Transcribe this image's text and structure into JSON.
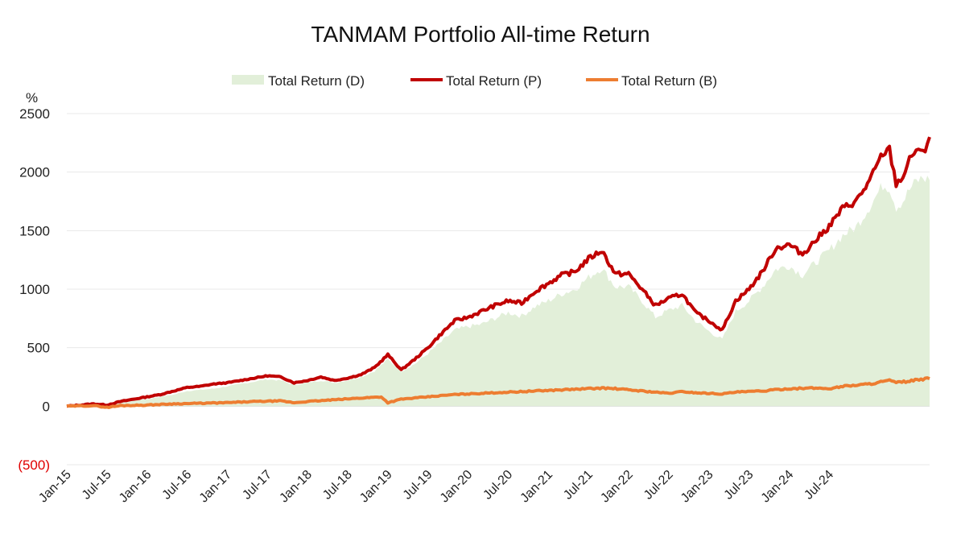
{
  "chart_data": {
    "type": "line",
    "title": "TANMAM Portfolio All-time Return",
    "ylabel": "%",
    "xlabel": "",
    "ylim": [
      -500,
      2500
    ],
    "yticks": [
      2500,
      2000,
      1500,
      1000,
      500,
      0,
      -500
    ],
    "ytick_labels": [
      "2500",
      "2000",
      "1500",
      "1000",
      "500",
      "0",
      "(500)"
    ],
    "xtick_labels": [
      "Jan-15",
      "Jul-15",
      "Jan-16",
      "Jul-16",
      "Jan-17",
      "Jul-17",
      "Jan-18",
      "Jul-18",
      "Jan-19",
      "Jul-19",
      "Jan-20",
      "Jul-20",
      "Jan-21",
      "Jul-21",
      "Jan-22",
      "Jul-22",
      "Jan-23",
      "Jul-23",
      "Jan-24",
      "Jul-24"
    ],
    "legend_position": "top",
    "colors": {
      "D": "#e2efd9",
      "P": "#c00000",
      "B": "#ed7d31"
    },
    "series": [
      {
        "name": "Total Return (D)",
        "kind": "area",
        "points": [
          [
            0,
            0
          ],
          [
            2,
            10
          ],
          [
            4,
            20
          ],
          [
            6,
            10
          ],
          [
            8,
            30
          ],
          [
            10,
            50
          ],
          [
            12,
            60
          ],
          [
            14,
            80
          ],
          [
            16,
            100
          ],
          [
            18,
            130
          ],
          [
            20,
            140
          ],
          [
            22,
            150
          ],
          [
            24,
            170
          ],
          [
            26,
            190
          ],
          [
            28,
            210
          ],
          [
            30,
            230
          ],
          [
            32,
            220
          ],
          [
            34,
            180
          ],
          [
            36,
            200
          ],
          [
            38,
            220
          ],
          [
            40,
            200
          ],
          [
            42,
            220
          ],
          [
            44,
            250
          ],
          [
            46,
            300
          ],
          [
            48,
            400
          ],
          [
            50,
            300
          ],
          [
            52,
            360
          ],
          [
            54,
            450
          ],
          [
            56,
            550
          ],
          [
            58,
            650
          ],
          [
            60,
            680
          ],
          [
            62,
            700
          ],
          [
            64,
            750
          ],
          [
            66,
            800
          ],
          [
            68,
            770
          ],
          [
            70,
            850
          ],
          [
            72,
            900
          ],
          [
            74,
            960
          ],
          [
            76,
            1000
          ],
          [
            78,
            1100
          ],
          [
            80,
            1180
          ],
          [
            82,
            1020
          ],
          [
            84,
            1020
          ],
          [
            86,
            900
          ],
          [
            88,
            760
          ],
          [
            90,
            820
          ],
          [
            92,
            860
          ],
          [
            94,
            730
          ],
          [
            96,
            640
          ],
          [
            98,
            570
          ],
          [
            100,
            810
          ],
          [
            102,
            900
          ],
          [
            104,
            1020
          ],
          [
            106,
            1170
          ],
          [
            108,
            1200
          ],
          [
            110,
            1120
          ],
          [
            112,
            1230
          ],
          [
            114,
            1330
          ],
          [
            116,
            1460
          ],
          [
            118,
            1530
          ],
          [
            120,
            1700
          ],
          [
            122,
            1890
          ],
          [
            123,
            1870
          ],
          [
            124,
            1700
          ],
          [
            125,
            1750
          ],
          [
            126,
            1850
          ],
          [
            127,
            1920
          ],
          [
            128,
            1950
          ],
          [
            129,
            1930
          ]
        ]
      },
      {
        "name": "Total Return (P)",
        "kind": "line",
        "points": [
          [
            0,
            0
          ],
          [
            2,
            10
          ],
          [
            4,
            20
          ],
          [
            6,
            10
          ],
          [
            8,
            40
          ],
          [
            10,
            60
          ],
          [
            12,
            80
          ],
          [
            14,
            100
          ],
          [
            16,
            130
          ],
          [
            18,
            160
          ],
          [
            20,
            170
          ],
          [
            22,
            190
          ],
          [
            24,
            200
          ],
          [
            26,
            220
          ],
          [
            28,
            240
          ],
          [
            30,
            260
          ],
          [
            32,
            250
          ],
          [
            34,
            200
          ],
          [
            36,
            220
          ],
          [
            38,
            250
          ],
          [
            40,
            220
          ],
          [
            42,
            240
          ],
          [
            44,
            270
          ],
          [
            46,
            330
          ],
          [
            48,
            440
          ],
          [
            50,
            310
          ],
          [
            52,
            400
          ],
          [
            54,
            500
          ],
          [
            56,
            620
          ],
          [
            58,
            730
          ],
          [
            60,
            760
          ],
          [
            62,
            810
          ],
          [
            64,
            860
          ],
          [
            66,
            900
          ],
          [
            68,
            880
          ],
          [
            70,
            980
          ],
          [
            72,
            1050
          ],
          [
            74,
            1120
          ],
          [
            76,
            1150
          ],
          [
            78,
            1260
          ],
          [
            80,
            1330
          ],
          [
            82,
            1130
          ],
          [
            84,
            1130
          ],
          [
            86,
            1000
          ],
          [
            88,
            860
          ],
          [
            90,
            920
          ],
          [
            92,
            960
          ],
          [
            94,
            800
          ],
          [
            96,
            730
          ],
          [
            98,
            650
          ],
          [
            100,
            900
          ],
          [
            102,
            1000
          ],
          [
            104,
            1150
          ],
          [
            106,
            1350
          ],
          [
            108,
            1380
          ],
          [
            110,
            1300
          ],
          [
            112,
            1420
          ],
          [
            114,
            1540
          ],
          [
            116,
            1690
          ],
          [
            118,
            1750
          ],
          [
            120,
            1920
          ],
          [
            122,
            2160
          ],
          [
            123,
            2190
          ],
          [
            124,
            1900
          ],
          [
            125,
            1960
          ],
          [
            126,
            2100
          ],
          [
            127,
            2200
          ],
          [
            128,
            2150
          ],
          [
            129,
            2300
          ]
        ]
      },
      {
        "name": "Total Return (B)",
        "kind": "line",
        "points": [
          [
            0,
            0
          ],
          [
            4,
            5
          ],
          [
            6,
            -10
          ],
          [
            8,
            5
          ],
          [
            12,
            10
          ],
          [
            16,
            20
          ],
          [
            20,
            25
          ],
          [
            24,
            30
          ],
          [
            28,
            40
          ],
          [
            32,
            45
          ],
          [
            34,
            30
          ],
          [
            36,
            40
          ],
          [
            40,
            55
          ],
          [
            44,
            70
          ],
          [
            47,
            80
          ],
          [
            48,
            30
          ],
          [
            50,
            60
          ],
          [
            54,
            80
          ],
          [
            58,
            100
          ],
          [
            62,
            110
          ],
          [
            66,
            120
          ],
          [
            70,
            130
          ],
          [
            74,
            140
          ],
          [
            78,
            150
          ],
          [
            80,
            155
          ],
          [
            82,
            150
          ],
          [
            84,
            140
          ],
          [
            86,
            130
          ],
          [
            88,
            120
          ],
          [
            90,
            110
          ],
          [
            92,
            125
          ],
          [
            94,
            115
          ],
          [
            96,
            110
          ],
          [
            98,
            105
          ],
          [
            100,
            120
          ],
          [
            104,
            130
          ],
          [
            108,
            150
          ],
          [
            112,
            155
          ],
          [
            114,
            150
          ],
          [
            116,
            170
          ],
          [
            120,
            190
          ],
          [
            122,
            210
          ],
          [
            123,
            220
          ],
          [
            124,
            200
          ],
          [
            126,
            215
          ],
          [
            128,
            230
          ],
          [
            129,
            235
          ]
        ]
      }
    ]
  }
}
